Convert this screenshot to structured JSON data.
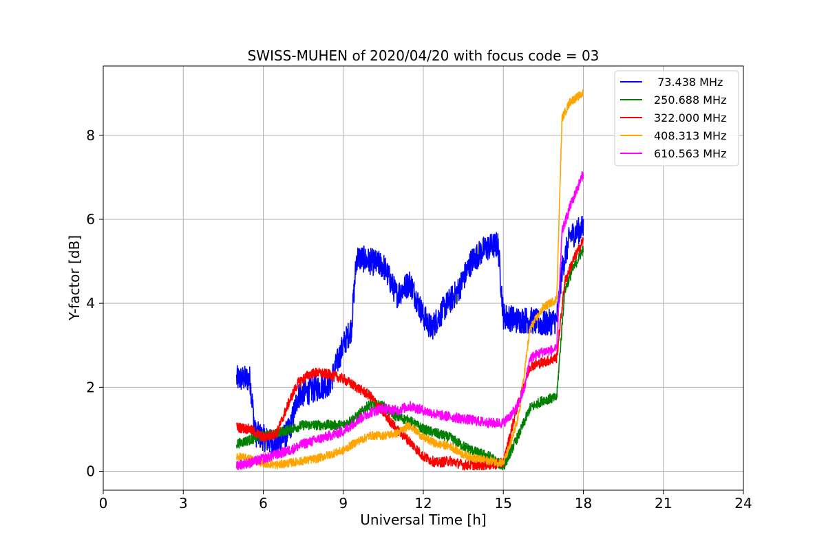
{
  "chart_data": {
    "type": "line",
    "title": "SWISS-MUHEN of 2020/04/20 with focus code = 03",
    "xlabel": "Universal Time [h]",
    "ylabel": "Y-factor [dB]",
    "xlim": [
      0,
      24
    ],
    "ylim": [
      -0.45,
      9.65
    ],
    "xticks": [
      0,
      3,
      6,
      9,
      12,
      15,
      18,
      21,
      24
    ],
    "yticks": [
      0,
      2,
      4,
      6,
      8
    ],
    "grid": true,
    "legend_position": "top-right",
    "series": [
      {
        "name": " 73.438 MHz",
        "color": "#0000ff",
        "noise": 0.32,
        "x": [
          5.0,
          5.5,
          5.7,
          6.0,
          6.5,
          7.0,
          7.3,
          7.7,
          8.5,
          9.0,
          9.3,
          9.5,
          10.0,
          10.5,
          11.0,
          11.5,
          12.0,
          12.3,
          12.8,
          13.3,
          13.8,
          14.3,
          14.8,
          15.0,
          15.5,
          16.0,
          16.5,
          17.0,
          17.2,
          17.5,
          18.0
        ],
        "y": [
          2.2,
          2.2,
          0.9,
          0.8,
          0.6,
          1.0,
          1.8,
          1.9,
          2.1,
          3.0,
          3.4,
          5.1,
          5.0,
          4.9,
          4.2,
          4.5,
          3.7,
          3.4,
          3.9,
          4.3,
          5.0,
          5.3,
          5.4,
          3.7,
          3.6,
          3.6,
          3.5,
          3.6,
          4.8,
          5.6,
          5.8
        ]
      },
      {
        "name": "250.688 MHz",
        "color": "#008000",
        "noise": 0.12,
        "x": [
          5.0,
          5.5,
          6.0,
          6.5,
          7.0,
          7.5,
          8.0,
          8.5,
          9.0,
          9.5,
          10.0,
          10.5,
          11.0,
          11.5,
          12.0,
          12.5,
          13.0,
          13.5,
          14.0,
          14.5,
          15.0,
          15.3,
          15.6,
          16.0,
          16.5,
          17.0,
          17.3,
          17.6,
          18.0
        ],
        "y": [
          0.65,
          0.75,
          0.85,
          0.9,
          1.0,
          1.1,
          1.1,
          1.1,
          1.1,
          1.3,
          1.6,
          1.55,
          1.3,
          1.2,
          1.0,
          0.9,
          0.8,
          0.6,
          0.45,
          0.35,
          0.1,
          0.5,
          0.9,
          1.5,
          1.7,
          1.75,
          4.3,
          4.8,
          5.3
        ]
      },
      {
        "name": "322.000 MHz",
        "color": "#ff0000",
        "noise": 0.12,
        "x": [
          5.0,
          5.5,
          6.0,
          6.5,
          7.0,
          7.3,
          7.7,
          8.0,
          8.5,
          9.0,
          9.5,
          10.0,
          10.5,
          11.0,
          11.5,
          12.0,
          12.5,
          13.0,
          13.5,
          14.0,
          14.5,
          15.0,
          15.5,
          16.0,
          16.5,
          17.0,
          17.3,
          17.6,
          18.0
        ],
        "y": [
          1.05,
          1.0,
          0.8,
          0.9,
          1.7,
          2.1,
          2.3,
          2.35,
          2.3,
          2.2,
          2.0,
          1.8,
          1.4,
          1.0,
          0.7,
          0.35,
          0.2,
          0.25,
          0.15,
          0.15,
          0.15,
          0.2,
          1.5,
          2.5,
          2.6,
          2.7,
          4.5,
          5.0,
          5.5
        ]
      },
      {
        "name": "408.313 MHz",
        "color": "#ffa500",
        "noise": 0.1,
        "x": [
          5.0,
          5.5,
          6.0,
          6.5,
          7.0,
          7.5,
          8.0,
          8.5,
          9.0,
          9.5,
          10.0,
          10.5,
          11.0,
          11.5,
          12.0,
          12.5,
          13.0,
          13.5,
          14.0,
          14.5,
          15.0,
          15.3,
          15.6,
          16.0,
          16.5,
          17.0,
          17.2,
          17.5,
          18.0
        ],
        "y": [
          0.35,
          0.3,
          0.2,
          0.15,
          0.2,
          0.25,
          0.3,
          0.4,
          0.5,
          0.7,
          0.85,
          0.85,
          0.9,
          1.1,
          0.8,
          0.65,
          0.6,
          0.4,
          0.3,
          0.25,
          0.2,
          0.7,
          1.4,
          3.4,
          3.9,
          4.1,
          8.4,
          8.8,
          9.0
        ]
      },
      {
        "name": "610.563 MHz",
        "color": "#ff00ff",
        "noise": 0.12,
        "x": [
          5.0,
          5.5,
          6.0,
          6.5,
          7.0,
          7.5,
          8.0,
          8.5,
          9.0,
          9.5,
          10.0,
          10.5,
          11.0,
          11.5,
          12.0,
          12.5,
          13.0,
          13.5,
          14.0,
          14.5,
          15.0,
          15.5,
          15.8,
          16.0,
          16.5,
          17.0,
          17.2,
          17.5,
          18.0
        ],
        "y": [
          0.15,
          0.2,
          0.3,
          0.4,
          0.5,
          0.65,
          0.75,
          0.85,
          0.95,
          1.2,
          1.4,
          1.5,
          1.45,
          1.55,
          1.45,
          1.35,
          1.3,
          1.25,
          1.2,
          1.15,
          1.15,
          1.5,
          2.0,
          2.7,
          2.85,
          2.9,
          5.7,
          6.3,
          7.1
        ]
      }
    ]
  }
}
